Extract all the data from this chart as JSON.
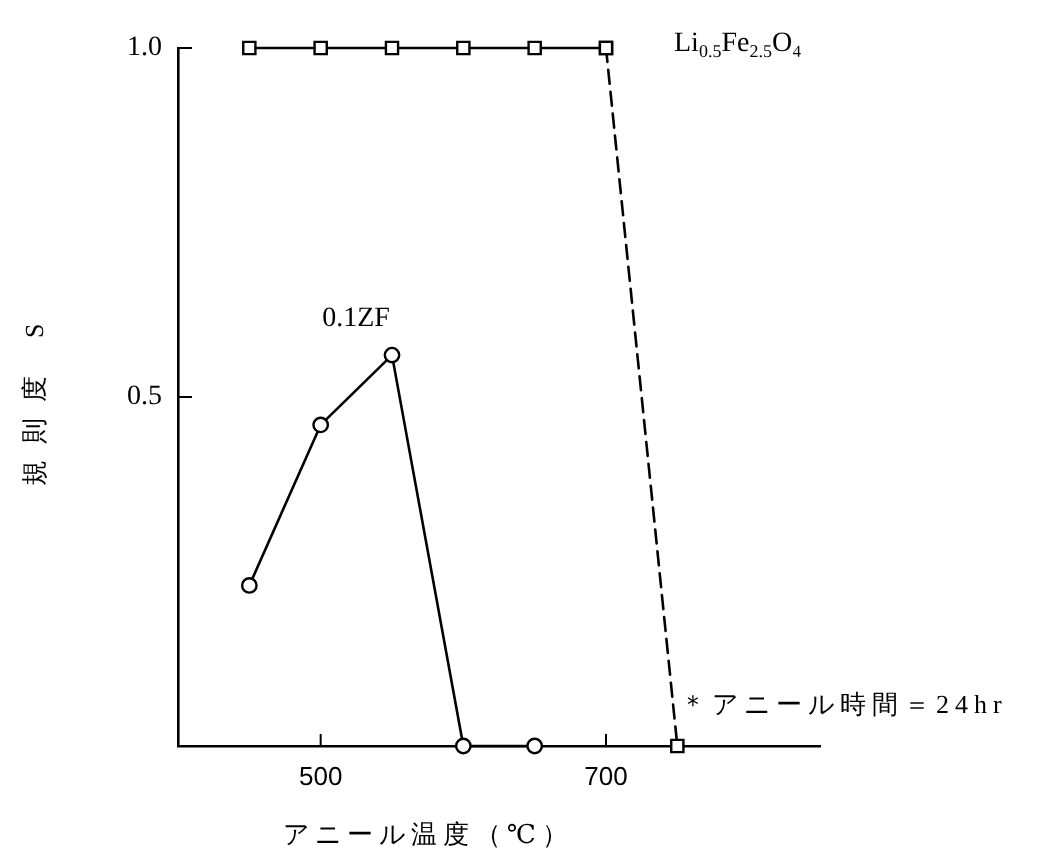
{
  "chart_data": {
    "type": "line",
    "xlabel": "アニール温度（℃）",
    "ylabel": "規則度 S",
    "xlim": [
      400,
      850
    ],
    "xticks": [
      500,
      700
    ],
    "ylim": [
      0,
      1
    ],
    "yticks": [
      0.5,
      {
        "value": 1,
        "label": "1.0"
      }
    ],
    "series": [
      {
        "name": "Li$_{0.5}$Fe$_{2.5}$O₄",
        "color": "#000000",
        "x": [
          450,
          500,
          550,
          600,
          650,
          700
        ],
        "values": [
          1,
          1,
          1,
          1,
          1,
          1
        ],
        "marker": "square",
        "line_style": "solid"
      },
      {
        "color": "#000000",
        "x": [
          700,
          750
        ],
        "values": [
          1,
          0
        ],
        "marker": "square",
        "line_style": "dashed"
      },
      {
        "name": "0.1ZF",
        "color": "#000000",
        "x": [
          450,
          500,
          550,
          600,
          650
        ],
        "values": [
          0.23,
          0.46,
          0.56,
          0,
          0
        ],
        "marker": "circle",
        "line_style": "solid"
      }
    ],
    "annotations": [
      "＊アニール時間＝24hr"
    ]
  }
}
